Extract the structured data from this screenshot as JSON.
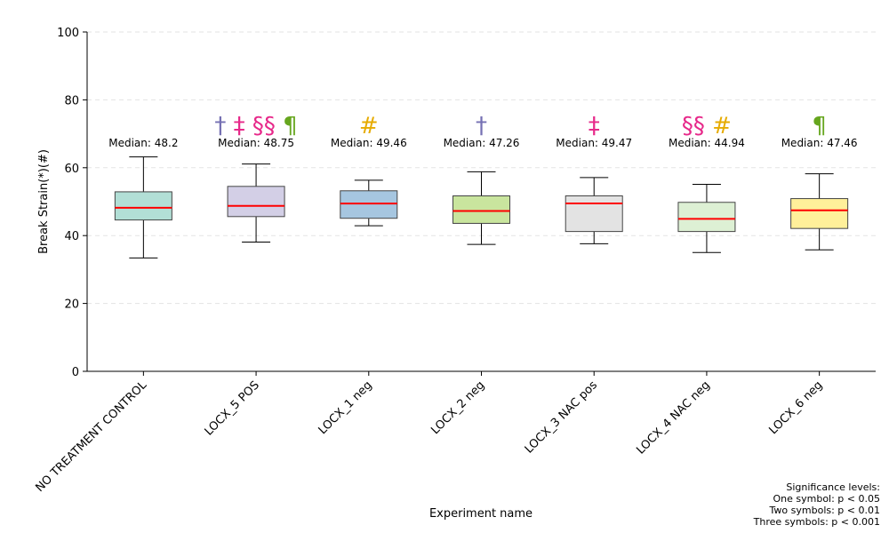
{
  "chart_data": {
    "type": "box",
    "xlabel": "Experiment name",
    "ylabel": "Break Strain(*)(#)",
    "ylim": [
      0,
      100
    ],
    "yticks": [
      0,
      20,
      40,
      60,
      80,
      100
    ],
    "grid": true,
    "median_prefix": "Median: ",
    "categories": [
      "NO TREATMENT CONTROL",
      "LOCX_5 POS",
      "LOCX_1 neg",
      "LOCX_2 neg",
      "LOCX_3 NAC pos",
      "LOCX_4 NAC neg",
      "LOCX_6 neg"
    ],
    "boxes": [
      {
        "whisker_low": 33.4,
        "q1": 44.6,
        "median": 48.2,
        "median_label": "48.2",
        "q3": 52.9,
        "whisker_high": 63.2,
        "fill": "#b2dfd6",
        "marks": []
      },
      {
        "whisker_low": 38.1,
        "q1": 45.6,
        "median": 48.75,
        "median_label": "48.75",
        "q3": 54.5,
        "whisker_high": 61.1,
        "fill": "#d3cfe6",
        "marks": [
          {
            "symbol": "†",
            "color": "#7570b3"
          },
          {
            "symbol": "‡",
            "color": "#e7298a"
          },
          {
            "symbol": "§§",
            "color": "#e7298a"
          },
          {
            "symbol": "¶",
            "color": "#66a61e"
          }
        ]
      },
      {
        "whisker_low": 42.9,
        "q1": 45.1,
        "median": 49.46,
        "median_label": "49.46",
        "q3": 53.2,
        "whisker_high": 56.3,
        "fill": "#a6c6e0",
        "marks": [
          {
            "symbol": "#",
            "color": "#e6ab02"
          }
        ]
      },
      {
        "whisker_low": 37.4,
        "q1": 43.6,
        "median": 47.26,
        "median_label": "47.26",
        "q3": 51.7,
        "whisker_high": 58.8,
        "fill": "#c9e59e",
        "marks": [
          {
            "symbol": "†",
            "color": "#7570b3"
          }
        ]
      },
      {
        "whisker_low": 37.6,
        "q1": 41.2,
        "median": 49.47,
        "median_label": "49.47",
        "q3": 51.7,
        "whisker_high": 57.1,
        "fill": "#e3e3e3",
        "marks": [
          {
            "symbol": "‡",
            "color": "#e7298a"
          }
        ]
      },
      {
        "whisker_low": 35.0,
        "q1": 41.2,
        "median": 44.94,
        "median_label": "44.94",
        "q3": 49.8,
        "whisker_high": 55.1,
        "fill": "#ddf0d4",
        "marks": [
          {
            "symbol": "§§",
            "color": "#e7298a"
          },
          {
            "symbol": "#",
            "color": "#e6ab02"
          }
        ]
      },
      {
        "whisker_low": 35.8,
        "q1": 42.1,
        "median": 47.46,
        "median_label": "47.46",
        "q3": 50.9,
        "whisker_high": 58.2,
        "fill": "#fff09a",
        "marks": [
          {
            "symbol": "¶",
            "color": "#66a61e"
          }
        ]
      }
    ],
    "median_line_color": "#ff0000",
    "significance_note": [
      "Significance levels:",
      "One symbol: p < 0.05",
      "Two symbols: p < 0.01",
      "Three symbols: p < 0.001"
    ]
  }
}
